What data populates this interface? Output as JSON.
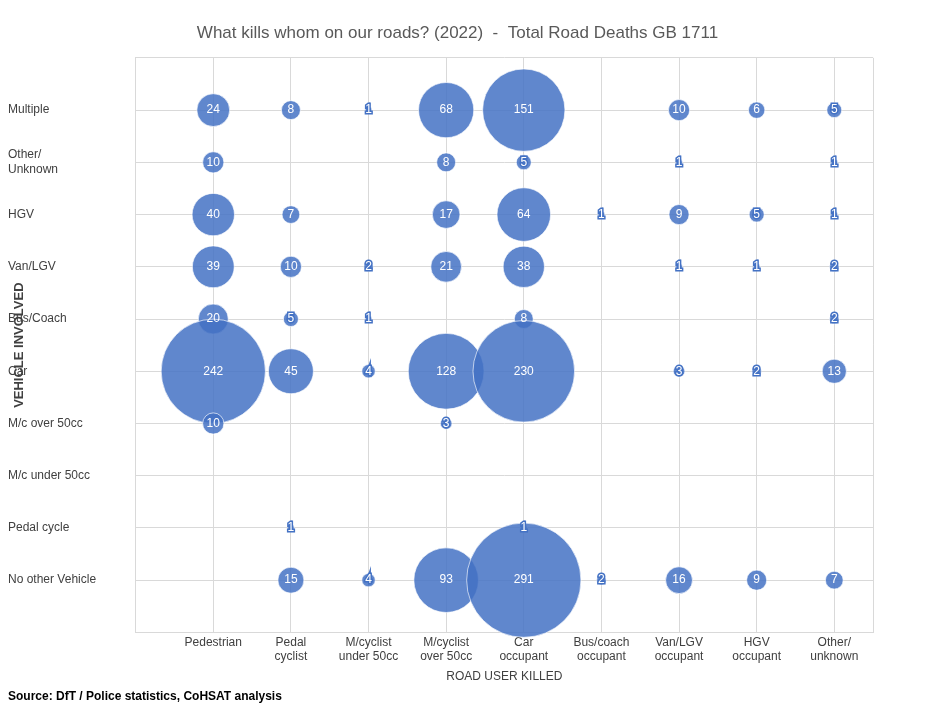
{
  "chart_data": {
    "type": "bubble",
    "title": "What kills whom on our roads? (2022)  -  Total Road Deaths GB 1711",
    "x_label": "ROAD USER KILLED",
    "y_label": "VEHICLE INVOLVED",
    "source": "Source: DfT / Police statistics, CoHSAT analysis",
    "x_categories": [
      "Pedestrian",
      [
        "Pedal",
        "cyclist"
      ],
      [
        "M/cyclist",
        "under 50cc"
      ],
      [
        "M/cyclist",
        "over 50cc"
      ],
      [
        "Car",
        "occupant"
      ],
      [
        "Bus/coach",
        "occupant"
      ],
      [
        "Van/LGV",
        "occupant"
      ],
      [
        "HGV",
        "occupant"
      ],
      [
        "Other/",
        "unknown"
      ]
    ],
    "y_categories": [
      "Multiple",
      [
        "Other/",
        "Unknown"
      ],
      "HGV",
      "Van/LGV",
      "Bus/Coach",
      "Car",
      "M/c over 50cc",
      "M/c under 50cc",
      "Pedal cycle",
      "No other Vehicle"
    ],
    "values": [
      [
        24,
        8,
        1,
        68,
        151,
        null,
        10,
        6,
        5
      ],
      [
        10,
        null,
        null,
        8,
        5,
        null,
        1,
        null,
        1
      ],
      [
        40,
        7,
        null,
        17,
        64,
        1,
        9,
        5,
        1
      ],
      [
        39,
        10,
        2,
        21,
        38,
        null,
        1,
        1,
        2
      ],
      [
        20,
        5,
        1,
        null,
        8,
        null,
        null,
        null,
        2
      ],
      [
        242,
        45,
        4,
        128,
        230,
        null,
        3,
        2,
        13
      ],
      [
        10,
        null,
        null,
        3,
        null,
        null,
        null,
        null,
        null
      ],
      [
        null,
        null,
        null,
        null,
        null,
        null,
        null,
        null,
        null
      ],
      [
        null,
        1,
        null,
        null,
        1,
        null,
        null,
        null,
        null
      ],
      [
        null,
        15,
        4,
        93,
        291,
        2,
        16,
        9,
        7
      ]
    ],
    "color": "#4472c4",
    "grid": true,
    "data_labels": true
  }
}
